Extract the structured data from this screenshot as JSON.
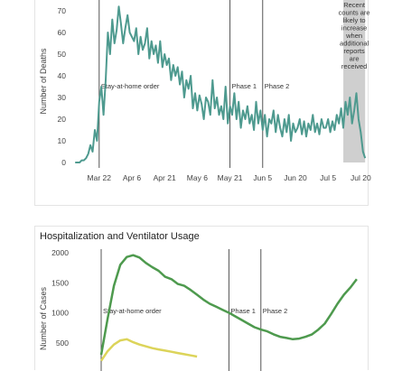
{
  "charts": [
    {
      "type": "line",
      "title": "",
      "ylabel": "Number of Deaths",
      "xlabel": "",
      "ylim": [
        0,
        75
      ],
      "yticks": [
        0,
        10,
        20,
        30,
        40,
        50,
        60,
        70
      ],
      "x_ticks": [
        "Mar 22",
        "Apr 6",
        "Apr 21",
        "May 6",
        "May 21",
        "Jun 5",
        "Jun 20",
        "Jul 5",
        "Jul 20"
      ],
      "series_color": "#4e9a8f",
      "annotations": [
        {
          "label": "Stay-at-home order",
          "at": "Mar 22"
        },
        {
          "label": "Phase 1",
          "at": "May 21"
        },
        {
          "label": "Phase 2",
          "at": "Jun 5"
        }
      ],
      "shaded_region": {
        "from": "Jul 12",
        "to": "Jul 22",
        "color": "#cfcfcf",
        "label": "Recent counts are likely to increase when additional reports are received"
      },
      "series": [
        {
          "name": "",
          "x": [
            "Mar 11",
            "Mar 12",
            "Mar 13",
            "Mar 14",
            "Mar 15",
            "Mar 16",
            "Mar 17",
            "Mar 18",
            "Mar 19",
            "Mar 20",
            "Mar 21",
            "Mar 22",
            "Mar 23",
            "Mar 24",
            "Mar 25",
            "Mar 26",
            "Mar 27",
            "Mar 28",
            "Mar 29",
            "Mar 30",
            "Mar 31",
            "Apr 1",
            "Apr 2",
            "Apr 3",
            "Apr 4",
            "Apr 5",
            "Apr 6",
            "Apr 7",
            "Apr 8",
            "Apr 9",
            "Apr 10",
            "Apr 11",
            "Apr 12",
            "Apr 13",
            "Apr 14",
            "Apr 15",
            "Apr 16",
            "Apr 17",
            "Apr 18",
            "Apr 19",
            "Apr 20",
            "Apr 21",
            "Apr 22",
            "Apr 23",
            "Apr 24",
            "Apr 25",
            "Apr 26",
            "Apr 27",
            "Apr 28",
            "Apr 29",
            "Apr 30",
            "May 1",
            "May 2",
            "May 3",
            "May 4",
            "May 5",
            "May 6",
            "May 7",
            "May 8",
            "May 9",
            "May 10",
            "May 11",
            "May 12",
            "May 13",
            "May 14",
            "May 15",
            "May 16",
            "May 17",
            "May 18",
            "May 19",
            "May 20",
            "May 21",
            "May 22",
            "May 23",
            "May 24",
            "May 25",
            "May 26",
            "May 27",
            "May 28",
            "May 29",
            "May 30",
            "May 31",
            "Jun 1",
            "Jun 2",
            "Jun 3",
            "Jun 4",
            "Jun 5",
            "Jun 6",
            "Jun 7",
            "Jun 8",
            "Jun 9",
            "Jun 10",
            "Jun 11",
            "Jun 12",
            "Jun 13",
            "Jun 14",
            "Jun 15",
            "Jun 16",
            "Jun 17",
            "Jun 18",
            "Jun 19",
            "Jun 20",
            "Jun 21",
            "Jun 22",
            "Jun 23",
            "Jun 24",
            "Jun 25",
            "Jun 26",
            "Jun 27",
            "Jun 28",
            "Jun 29",
            "Jun 30",
            "Jul 1",
            "Jul 2",
            "Jul 3",
            "Jul 4",
            "Jul 5",
            "Jul 6",
            "Jul 7",
            "Jul 8",
            "Jul 9",
            "Jul 10",
            "Jul 11",
            "Jul 12",
            "Jul 13",
            "Jul 14",
            "Jul 15",
            "Jul 16",
            "Jul 17",
            "Jul 18",
            "Jul 19",
            "Jul 20",
            "Jul 21",
            "Jul 22"
          ],
          "values": [
            0,
            0,
            0,
            1,
            1,
            2,
            4,
            8,
            5,
            15,
            10,
            28,
            35,
            22,
            38,
            60,
            50,
            66,
            55,
            61,
            72,
            64,
            55,
            62,
            68,
            60,
            58,
            56,
            62,
            50,
            58,
            52,
            55,
            62,
            48,
            56,
            50,
            54,
            46,
            56,
            44,
            50,
            45,
            48,
            38,
            45,
            40,
            44,
            36,
            42,
            30,
            38,
            34,
            40,
            25,
            32,
            24,
            31,
            27,
            20,
            30,
            28,
            22,
            38,
            25,
            30,
            22,
            26,
            20,
            35,
            18,
            26,
            22,
            32,
            20,
            28,
            16,
            24,
            20,
            26,
            18,
            22,
            15,
            28,
            18,
            24,
            15,
            22,
            12,
            20,
            18,
            24,
            14,
            22,
            16,
            12,
            20,
            14,
            22,
            10,
            18,
            14,
            16,
            20,
            13,
            19,
            12,
            18,
            15,
            22,
            14,
            18,
            13,
            20,
            16,
            16,
            20,
            14,
            19,
            15,
            22,
            18,
            25,
            16,
            28,
            22,
            30,
            18,
            24,
            32,
            20,
            14,
            5,
            2
          ]
        }
      ]
    },
    {
      "type": "line",
      "title": "Hospitalization and Ventilator Usage",
      "ylabel": "Number of Cases",
      "xlabel": "",
      "ylim": [
        0,
        2000
      ],
      "yticks": [
        500,
        1000,
        1500,
        2000
      ],
      "annotations": [
        {
          "label": "Stay-at-home order",
          "at": "Mar 22"
        },
        {
          "label": "Phase 1",
          "at": "May 21"
        },
        {
          "label": "Phase 2",
          "at": "Jun 5"
        }
      ],
      "series": [
        {
          "name": "",
          "color": "#4e9a4e",
          "x": [
            "Mar 22",
            "Mar 25",
            "Mar 28",
            "Mar 31",
            "Apr 3",
            "Apr 6",
            "Apr 9",
            "Apr 12",
            "Apr 15",
            "Apr 18",
            "Apr 21",
            "Apr 24",
            "Apr 27",
            "Apr 30",
            "May 3",
            "May 6",
            "May 9",
            "May 12",
            "May 15",
            "May 18",
            "May 21",
            "May 24",
            "May 27",
            "May 30",
            "Jun 2",
            "Jun 5",
            "Jun 8",
            "Jun 11",
            "Jun 14",
            "Jun 17",
            "Jun 20",
            "Jun 23",
            "Jun 26",
            "Jun 29",
            "Jul 2",
            "Jul 5",
            "Jul 8",
            "Jul 11",
            "Jul 14",
            "Jul 17",
            "Jul 20"
          ],
          "values": [
            300,
            900,
            1450,
            1800,
            1930,
            1960,
            1920,
            1830,
            1760,
            1700,
            1600,
            1560,
            1480,
            1450,
            1380,
            1300,
            1220,
            1150,
            1100,
            1050,
            1000,
            940,
            880,
            820,
            760,
            720,
            690,
            640,
            600,
            580,
            560,
            570,
            600,
            640,
            720,
            820,
            980,
            1150,
            1300,
            1420,
            1560
          ]
        },
        {
          "name": "",
          "color": "#dcd45a",
          "x": [
            "Mar 22",
            "Mar 25",
            "Mar 28",
            "Mar 31",
            "Apr 3",
            "Apr 6",
            "Apr 9",
            "Apr 12",
            "Apr 15",
            "Apr 18",
            "Apr 21",
            "Apr 24",
            "Apr 27",
            "Apr 30",
            "May 3",
            "May 6"
          ],
          "values": [
            200,
            360,
            470,
            540,
            560,
            510,
            470,
            440,
            410,
            390,
            370,
            350,
            330,
            310,
            290,
            270
          ]
        }
      ]
    }
  ]
}
